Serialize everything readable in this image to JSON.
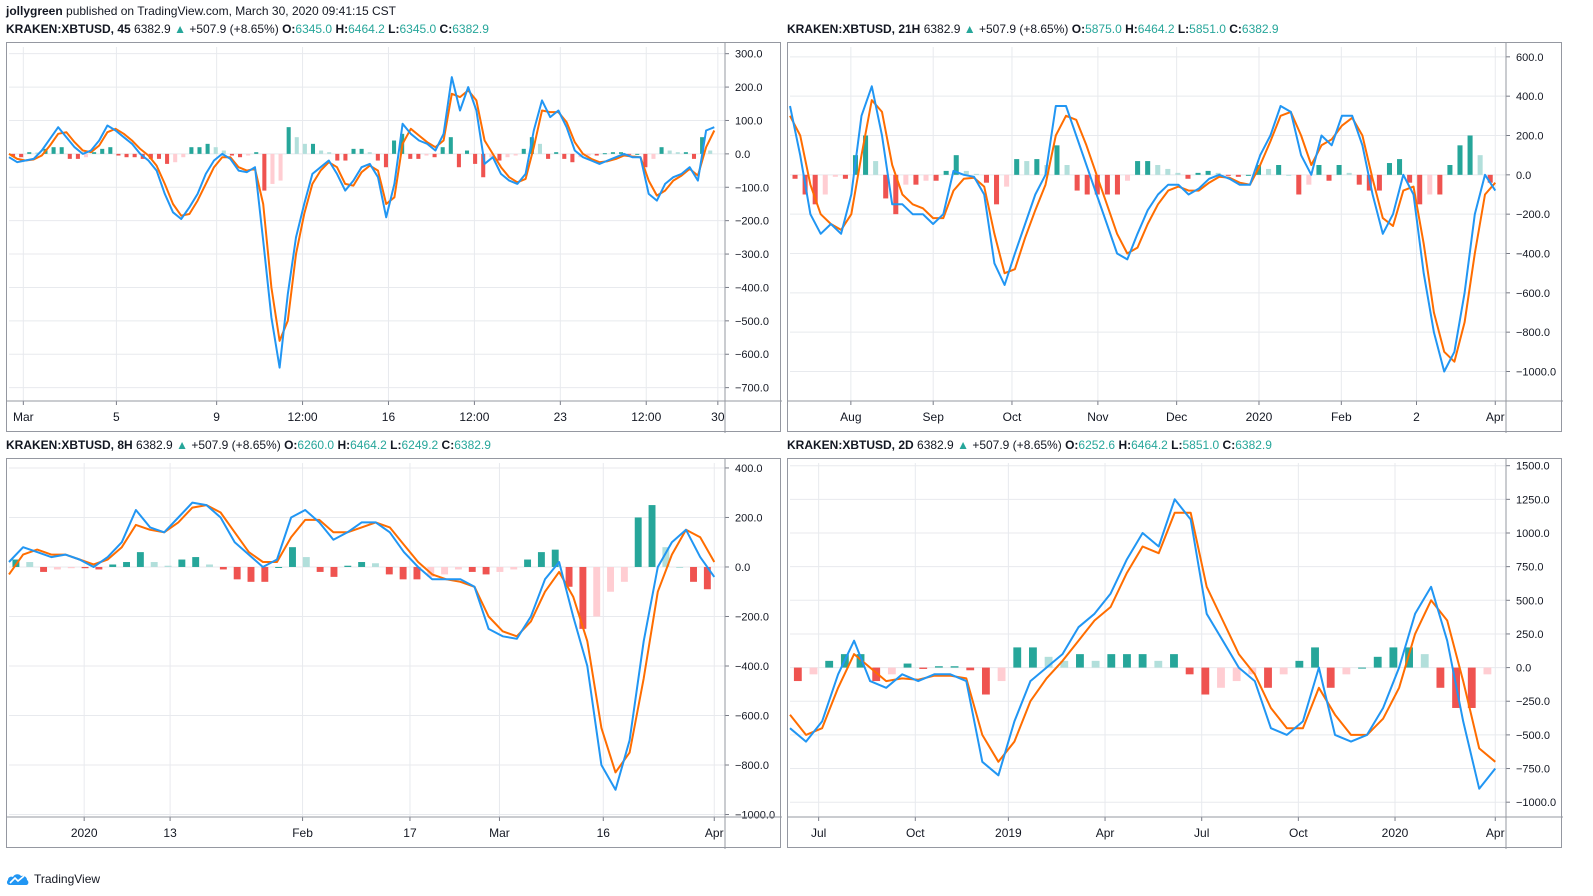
{
  "header": {
    "author": "jollygreen",
    "published": "published on TradingView.com, March 30, 2020 09:41:15 CST"
  },
  "footer": {
    "brand": "TradingView",
    "icon": "tradingview-cloud-icon"
  },
  "colors": {
    "macd": "#2196f3",
    "signal": "#ff6d00",
    "hist_up_strong": "#26a69a",
    "hist_up_weak": "#b2dfdb",
    "hist_down_strong": "#ef5350",
    "hist_down_weak": "#ffcdd2",
    "grid": "#e8eaee",
    "axis_text": "#131722"
  },
  "panels": [
    {
      "symbol": "KRAKEN:XBTUSD, 45",
      "price": "6382.9",
      "change": "+507.9 (+8.65%)",
      "O": "6345.0",
      "H": "6464.2",
      "L": "6345.0",
      "C": "6382.9"
    },
    {
      "symbol": "KRAKEN:XBTUSD, 21H",
      "price": "6382.9",
      "change": "+507.9 (+8.65%)",
      "O": "5875.0",
      "H": "6464.2",
      "L": "5851.0",
      "C": "6382.9"
    },
    {
      "symbol": "KRAKEN:XBTUSD, 8H",
      "price": "6382.9",
      "change": "+507.9 (+8.65%)",
      "O": "6260.0",
      "H": "6464.2",
      "L": "6249.2",
      "C": "6382.9"
    },
    {
      "symbol": "KRAKEN:XBTUSD, 2D",
      "price": "6382.9",
      "change": "+507.9 (+8.65%)",
      "O": "6252.6",
      "H": "6464.2",
      "L": "5851.0",
      "C": "6382.9"
    }
  ],
  "chart_data": [
    {
      "type": "line",
      "ylim": [
        -740,
        320
      ],
      "yticks": [
        300,
        200,
        100,
        0,
        -100,
        -200,
        -300,
        -400,
        -500,
        -600,
        -700
      ],
      "ytick_labels": [
        "300.0",
        "200.0",
        "100.0",
        "0.0",
        "−100.0",
        "−200.0",
        "−300.0",
        "−400.0",
        "−500.0",
        "−600.0",
        "−700.0"
      ],
      "xtick_labels": [
        "Mar",
        "5",
        "9",
        "12:00",
        "16",
        "12:00",
        "23",
        "12:00",
        "30"
      ],
      "xtick_pos": [
        0.02,
        0.15,
        0.29,
        0.41,
        0.53,
        0.65,
        0.77,
        0.89,
        0.99
      ],
      "series": [
        {
          "role": "macd",
          "values": [
            -10,
            -25,
            -20,
            -15,
            10,
            45,
            80,
            50,
            20,
            0,
            10,
            40,
            85,
            70,
            50,
            30,
            0,
            -20,
            -50,
            -120,
            -175,
            -195,
            -160,
            -120,
            -60,
            -20,
            0,
            -15,
            -50,
            -55,
            -40,
            -260,
            -490,
            -640,
            -420,
            -250,
            -150,
            -60,
            -40,
            -20,
            -60,
            -110,
            -80,
            -40,
            -30,
            -70,
            -190,
            -90,
            90,
            60,
            40,
            30,
            10,
            60,
            230,
            130,
            200,
            130,
            -30,
            -10,
            -60,
            -80,
            -90,
            -60,
            70,
            160,
            110,
            130,
            80,
            10,
            -10,
            -20,
            -30,
            -20,
            -10,
            0,
            -10,
            -10,
            -120,
            -140,
            -90,
            -70,
            -60,
            -40,
            -80,
            70,
            80
          ]
        },
        {
          "role": "signal",
          "values": [
            0,
            -15,
            -20,
            -17,
            -5,
            25,
            60,
            65,
            35,
            10,
            5,
            25,
            65,
            75,
            60,
            40,
            15,
            -5,
            -35,
            -90,
            -150,
            -185,
            -180,
            -140,
            -90,
            -40,
            -10,
            -10,
            -40,
            -50,
            -45,
            -150,
            -400,
            -560,
            -500,
            -300,
            -180,
            -90,
            -50,
            -25,
            -40,
            -90,
            -95,
            -55,
            -35,
            -50,
            -150,
            -130,
            30,
            75,
            55,
            35,
            20,
            40,
            180,
            170,
            190,
            160,
            40,
            0,
            -40,
            -70,
            -85,
            -75,
            20,
            130,
            125,
            125,
            95,
            35,
            0,
            -15,
            -25,
            -22,
            -15,
            -5,
            -8,
            -10,
            -80,
            -125,
            -110,
            -80,
            -65,
            -45,
            -65,
            20,
            70
          ]
        },
        {
          "role": "hist",
          "values": [
            -8,
            -10,
            5,
            4,
            15,
            20,
            20,
            -15,
            -15,
            -10,
            5,
            15,
            20,
            -5,
            -10,
            -10,
            -15,
            -15,
            -15,
            -30,
            -25,
            -10,
            20,
            20,
            30,
            20,
            10,
            -5,
            -10,
            -5,
            5,
            -110,
            -90,
            -80,
            80,
            50,
            30,
            30,
            10,
            5,
            -20,
            -20,
            15,
            15,
            5,
            -20,
            -40,
            40,
            60,
            -15,
            -15,
            -5,
            -10,
            20,
            50,
            -40,
            10,
            -30,
            -70,
            -10,
            -20,
            -10,
            -5,
            15,
            50,
            30,
            -15,
            5,
            -15,
            -25,
            -10,
            -5,
            -5,
            2,
            5,
            5,
            -2,
            0,
            -40,
            -15,
            20,
            10,
            5,
            5,
            -15,
            50,
            10
          ]
        }
      ]
    },
    {
      "type": "line",
      "ylim": [
        -1150,
        650
      ],
      "yticks": [
        600,
        400,
        200,
        0,
        -200,
        -400,
        -600,
        -800,
        -1000
      ],
      "ytick_labels": [
        "600.0",
        "400.0",
        "200.0",
        "0.0",
        "−200.0",
        "−400.0",
        "−600.0",
        "−800.0",
        "−1000.0"
      ],
      "xtick_labels": [
        "Aug",
        "Sep",
        "Oct",
        "Nov",
        "Dec",
        "2020",
        "Feb",
        "2",
        "Apr"
      ],
      "xtick_pos": [
        0.085,
        0.2,
        0.31,
        0.43,
        0.54,
        0.655,
        0.77,
        0.875,
        0.985
      ],
      "series": [
        {
          "role": "macd",
          "values": [
            350,
            100,
            -200,
            -300,
            -250,
            -300,
            -100,
            300,
            450,
            200,
            -150,
            -150,
            -200,
            -200,
            -250,
            -200,
            20,
            0,
            -10,
            -100,
            -450,
            -560,
            -400,
            -250,
            -100,
            0,
            350,
            350,
            200,
            50,
            -100,
            -250,
            -400,
            -430,
            -300,
            -180,
            -100,
            -50,
            -50,
            -100,
            -70,
            -20,
            0,
            -20,
            -50,
            -50,
            100,
            200,
            350,
            320,
            100,
            0,
            200,
            150,
            300,
            300,
            150,
            -100,
            -300,
            -200,
            0,
            -100,
            -500,
            -800,
            -1000,
            -900,
            -600,
            -200,
            0,
            -80
          ]
        },
        {
          "role": "signal",
          "values": [
            300,
            200,
            -50,
            -200,
            -250,
            -280,
            -200,
            100,
            380,
            320,
            50,
            -100,
            -150,
            -170,
            -220,
            -220,
            -80,
            -20,
            -15,
            -60,
            -300,
            -500,
            -480,
            -320,
            -180,
            -50,
            200,
            300,
            280,
            150,
            0,
            -150,
            -300,
            -400,
            -370,
            -250,
            -150,
            -80,
            -60,
            -80,
            -80,
            -40,
            -10,
            -15,
            -40,
            -50,
            50,
            170,
            300,
            320,
            200,
            50,
            150,
            180,
            250,
            290,
            200,
            -20,
            -220,
            -260,
            -80,
            -60,
            -350,
            -700,
            -900,
            -950,
            -750,
            -400,
            -100,
            -40
          ]
        },
        {
          "role": "hist",
          "values": [
            -20,
            -100,
            -150,
            -100,
            -10,
            -20,
            100,
            200,
            70,
            -120,
            -200,
            -50,
            -50,
            -30,
            -30,
            20,
            100,
            20,
            5,
            -40,
            -150,
            -60,
            80,
            70,
            80,
            50,
            150,
            50,
            -80,
            -100,
            -100,
            -100,
            -100,
            -30,
            70,
            70,
            50,
            30,
            10,
            -20,
            10,
            20,
            10,
            -5,
            -10,
            0,
            50,
            30,
            50,
            0,
            -100,
            -50,
            50,
            -30,
            50,
            10,
            -50,
            -80,
            -80,
            60,
            80,
            -40,
            -150,
            -100,
            -100,
            50,
            150,
            200,
            100,
            -40
          ]
        }
      ]
    },
    {
      "type": "line",
      "ylim": [
        -1010,
        420
      ],
      "yticks": [
        400,
        200,
        0,
        -200,
        -400,
        -600,
        -800,
        -1000
      ],
      "ytick_labels": [
        "400.0",
        "200.0",
        "0.0",
        "−200.0",
        "−400.0",
        "−600.0",
        "−800.0",
        "−1000.0"
      ],
      "xtick_labels": [
        "2020",
        "13",
        "Feb",
        "17",
        "Mar",
        "16",
        "Apr"
      ],
      "xtick_pos": [
        0.105,
        0.225,
        0.41,
        0.56,
        0.685,
        0.83,
        0.985
      ],
      "series": [
        {
          "role": "macd",
          "values": [
            20,
            80,
            60,
            40,
            50,
            30,
            0,
            40,
            100,
            230,
            160,
            140,
            200,
            260,
            250,
            200,
            100,
            50,
            0,
            30,
            200,
            230,
            180,
            110,
            140,
            180,
            180,
            140,
            60,
            0,
            -50,
            -50,
            -50,
            -80,
            -250,
            -280,
            -290,
            -200,
            -50,
            20,
            -200,
            -400,
            -800,
            -900,
            -700,
            -300,
            0,
            100,
            150,
            40,
            -40
          ]
        },
        {
          "role": "signal",
          "values": [
            -30,
            50,
            70,
            50,
            50,
            30,
            10,
            30,
            80,
            170,
            150,
            140,
            180,
            240,
            250,
            220,
            140,
            60,
            20,
            20,
            120,
            190,
            190,
            140,
            140,
            160,
            180,
            160,
            90,
            20,
            -30,
            -50,
            -60,
            -80,
            -200,
            -260,
            -280,
            -220,
            -100,
            -20,
            -120,
            -300,
            -650,
            -830,
            -750,
            -450,
            -100,
            50,
            150,
            120,
            20
          ]
        },
        {
          "role": "hist",
          "values": [
            30,
            20,
            -20,
            -10,
            -5,
            -5,
            -10,
            10,
            20,
            60,
            20,
            5,
            30,
            40,
            10,
            -10,
            -50,
            -60,
            -60,
            0,
            80,
            40,
            -20,
            -40,
            5,
            20,
            15,
            -30,
            -50,
            -50,
            -40,
            -30,
            -10,
            -20,
            -30,
            -20,
            -10,
            30,
            60,
            70,
            -80,
            -250,
            -200,
            -100,
            -60,
            200,
            250,
            80,
            0,
            -60,
            -90
          ]
        }
      ]
    },
    {
      "type": "line",
      "ylim": [
        -1110,
        1520
      ],
      "yticks": [
        1500,
        1250,
        1000,
        750,
        500,
        250,
        0,
        -250,
        -500,
        -750,
        -1000
      ],
      "ytick_labels": [
        "1500.0",
        "1250.0",
        "1000.0",
        "750.0",
        "500.0",
        "250.0",
        "0.0",
        "−250.0",
        "−500.0",
        "−750.0",
        "−1000.0"
      ],
      "xtick_labels": [
        "Jul",
        "Oct",
        "2019",
        "Apr",
        "Jul",
        "Oct",
        "2020",
        "Apr"
      ],
      "xtick_pos": [
        0.04,
        0.175,
        0.305,
        0.44,
        0.575,
        0.71,
        0.845,
        0.985
      ],
      "series": [
        {
          "role": "macd",
          "values": [
            -450,
            -550,
            -400,
            -50,
            200,
            -100,
            -150,
            -50,
            -100,
            -50,
            -50,
            -100,
            -700,
            -800,
            -400,
            -100,
            0,
            100,
            300,
            400,
            550,
            800,
            1000,
            900,
            1250,
            1100,
            400,
            200,
            0,
            -100,
            -450,
            -500,
            -400,
            0,
            -500,
            -550,
            -500,
            -300,
            0,
            400,
            600,
            200,
            -400,
            -900,
            -750
          ]
        },
        {
          "role": "signal",
          "values": [
            -350,
            -500,
            -450,
            -150,
            100,
            0,
            -100,
            -80,
            -90,
            -60,
            -60,
            -80,
            -500,
            -700,
            -550,
            -250,
            -80,
            50,
            200,
            350,
            450,
            700,
            900,
            850,
            1150,
            1150,
            600,
            350,
            100,
            -50,
            -300,
            -450,
            -450,
            -150,
            -350,
            -500,
            -500,
            -380,
            -150,
            250,
            500,
            350,
            -100,
            -600,
            -700
          ]
        },
        {
          "role": "hist",
          "values": [
            -100,
            -50,
            50,
            100,
            100,
            -100,
            -50,
            30,
            -10,
            10,
            10,
            -20,
            -200,
            -100,
            150,
            150,
            80,
            50,
            100,
            50,
            100,
            100,
            100,
            50,
            100,
            -50,
            -200,
            -150,
            -100,
            -50,
            -150,
            -50,
            50,
            150,
            -150,
            -50,
            0,
            80,
            150,
            150,
            100,
            -150,
            -300,
            -300,
            -50
          ]
        }
      ]
    }
  ]
}
